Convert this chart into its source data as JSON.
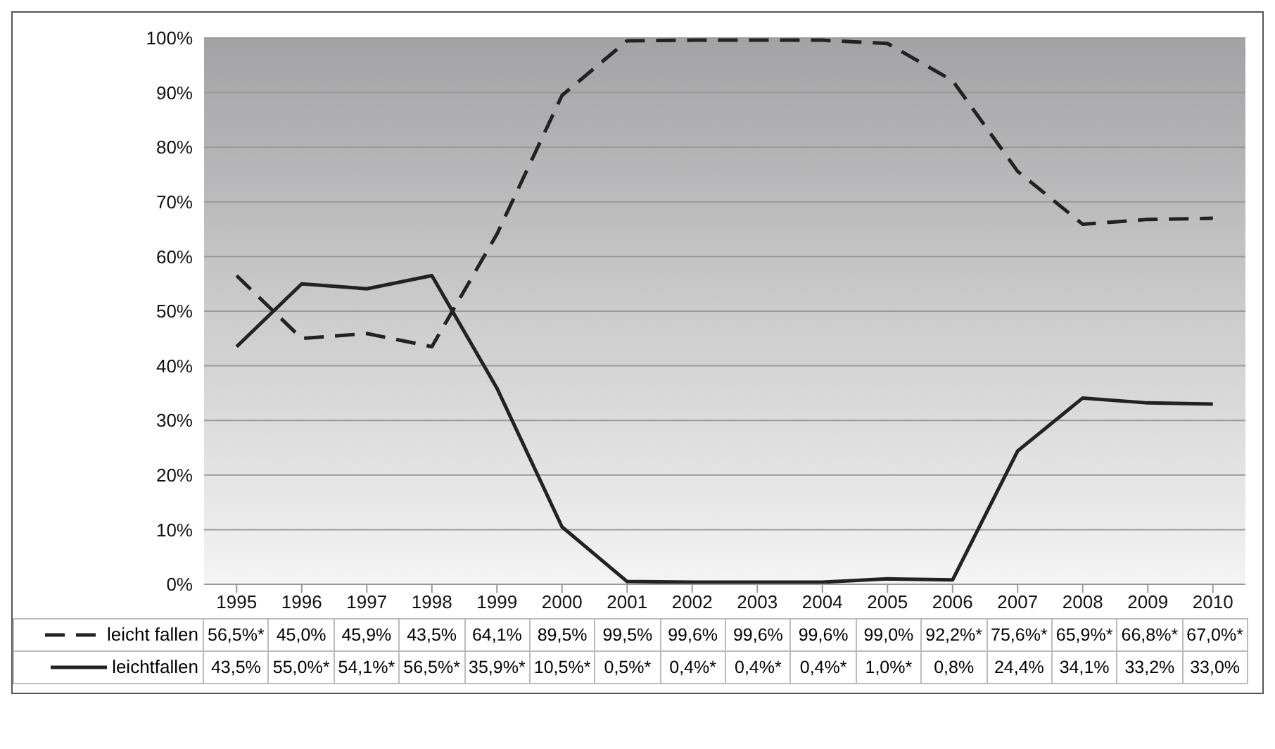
{
  "chart_data": {
    "type": "line",
    "categories": [
      "1995",
      "1996",
      "1997",
      "1998",
      "1999",
      "2000",
      "2001",
      "2002",
      "2003",
      "2004",
      "2005",
      "2006",
      "2007",
      "2008",
      "2009",
      "2010"
    ],
    "series": [
      {
        "name": "leicht fallen",
        "color": "#222222",
        "line_style": "dashed",
        "values": [
          56.5,
          45.0,
          45.9,
          43.5,
          64.1,
          89.5,
          99.5,
          99.6,
          99.6,
          99.6,
          99.0,
          92.2,
          75.6,
          65.9,
          66.8,
          67.0
        ],
        "value_labels": [
          "56,5%*",
          "45,0%",
          "45,9%",
          "43,5%",
          "64,1%",
          "89,5%",
          "99,5%",
          "99,6%",
          "99,6%",
          "99,6%",
          "99,0%",
          "92,2%*",
          "75,6%*",
          "65,9%*",
          "66,8%*",
          "67,0%*"
        ]
      },
      {
        "name": "leichtfallen",
        "color": "#222222",
        "line_style": "solid",
        "values": [
          43.5,
          55.0,
          54.1,
          56.5,
          35.9,
          10.5,
          0.5,
          0.4,
          0.4,
          0.4,
          1.0,
          0.8,
          24.4,
          34.1,
          33.2,
          33.0
        ],
        "value_labels": [
          "43,5%",
          "55,0%*",
          "54,1%*",
          "56,5%*",
          "35,9%*",
          "10,5%*",
          "0,5%*",
          "0,4%*",
          "0,4%*",
          "0,4%*",
          "1,0%*",
          "0,8%",
          "24,4%",
          "34,1%",
          "33,2%",
          "33,0%"
        ]
      }
    ],
    "ylim": [
      0,
      100
    ],
    "yticks": [
      {
        "value": 0,
        "label": "0%"
      },
      {
        "value": 10,
        "label": "10%"
      },
      {
        "value": 20,
        "label": "20%"
      },
      {
        "value": 30,
        "label": "30%"
      },
      {
        "value": 40,
        "label": "40%"
      },
      {
        "value": 50,
        "label": "50%"
      },
      {
        "value": 60,
        "label": "60%"
      },
      {
        "value": 70,
        "label": "70%"
      },
      {
        "value": 80,
        "label": "80%"
      },
      {
        "value": 90,
        "label": "90%"
      },
      {
        "value": 100,
        "label": "100%"
      }
    ],
    "grid": "y",
    "legend": "bottom",
    "marker": "none"
  }
}
